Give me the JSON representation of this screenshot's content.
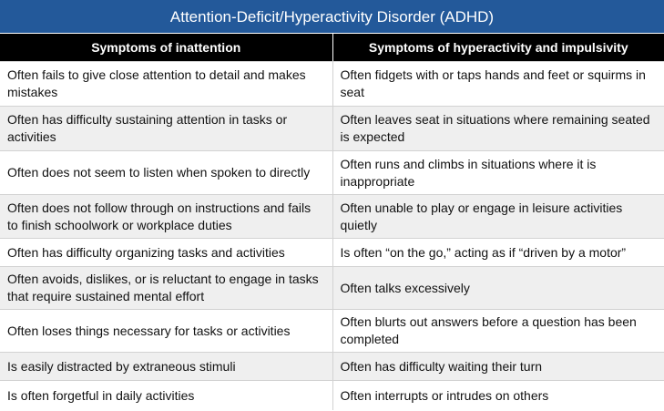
{
  "title": "Attention-Deficit/Hyperactivity Disorder (ADHD)",
  "columns": [
    "Symptoms of inattention",
    "Symptoms of hyperactivity and impulsivity"
  ],
  "rows": [
    [
      "Often fails to give close attention to detail and makes mistakes",
      "Often fidgets with or taps hands and feet or squirms in seat"
    ],
    [
      "Often has difficulty sustaining attention in tasks or activities",
      "Often leaves seat in situations where remaining seated is expected"
    ],
    [
      "Often does not seem to listen when spoken to directly",
      "Often runs and climbs in situations where it is inappropriate"
    ],
    [
      "Often does not follow through on instructions and fails to finish schoolwork or workplace duties",
      "Often unable to play or engage in leisure activities quietly"
    ],
    [
      "Often has difficulty organizing tasks and activities",
      "Is often “on the go,” acting as if “driven by a motor”"
    ],
    [
      "Often avoids, dislikes, or is reluctant to engage in tasks that require sustained mental effort",
      "Often talks excessively"
    ],
    [
      "Often loses things necessary for tasks or activities",
      "Often blurts out answers before a question has been completed"
    ],
    [
      "Is easily distracted by extraneous stimuli",
      "Often has difficulty waiting their turn"
    ],
    [
      "Is often forgetful in daily activities",
      "Often interrupts or intrudes on others"
    ]
  ]
}
